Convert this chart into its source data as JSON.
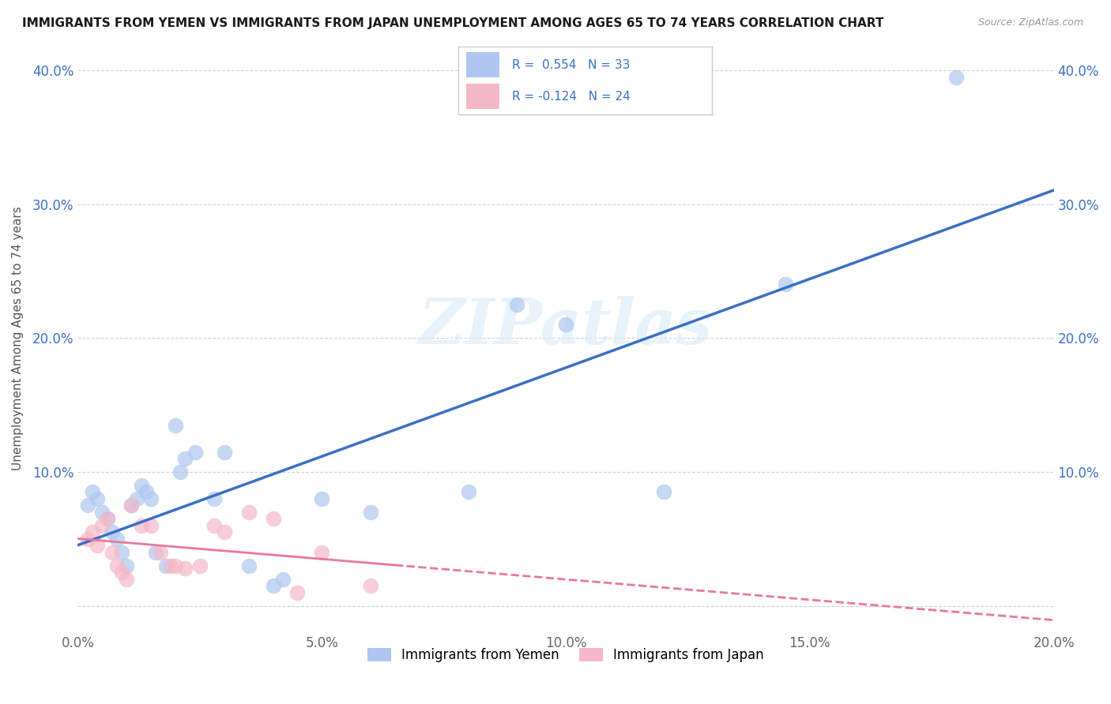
{
  "title": "IMMIGRANTS FROM YEMEN VS IMMIGRANTS FROM JAPAN UNEMPLOYMENT AMONG AGES 65 TO 74 YEARS CORRELATION CHART",
  "source": "Source: ZipAtlas.com",
  "ylabel": "Unemployment Among Ages 65 to 74 years",
  "xlim": [
    0.0,
    0.2
  ],
  "ylim": [
    -0.02,
    0.42
  ],
  "xticks": [
    0.0,
    0.05,
    0.1,
    0.15,
    0.2
  ],
  "yticks": [
    0.0,
    0.1,
    0.2,
    0.3,
    0.4
  ],
  "xtick_labels": [
    "0.0%",
    "5.0%",
    "10.0%",
    "15.0%",
    "20.0%"
  ],
  "ytick_labels": [
    "",
    "10.0%",
    "20.0%",
    "30.0%",
    "40.0%"
  ],
  "legend_bottom": [
    "Immigrants from Yemen",
    "Immigrants from Japan"
  ],
  "yemen_color": "#aec6f0",
  "japan_color": "#f5b8c8",
  "yemen_line_color": "#3a6fc4",
  "japan_line_color": "#e8789a",
  "watermark": "ZIPatlas",
  "bg_color": "#ffffff",
  "grid_color": "#cccccc",
  "yemen_scatter_x": [
    0.002,
    0.003,
    0.004,
    0.005,
    0.006,
    0.007,
    0.008,
    0.009,
    0.01,
    0.011,
    0.012,
    0.013,
    0.014,
    0.015,
    0.016,
    0.018,
    0.02,
    0.021,
    0.022,
    0.024,
    0.028,
    0.03,
    0.035,
    0.04,
    0.042,
    0.05,
    0.06,
    0.08,
    0.09,
    0.1,
    0.12,
    0.145,
    0.18
  ],
  "yemen_scatter_y": [
    0.075,
    0.085,
    0.08,
    0.07,
    0.065,
    0.055,
    0.05,
    0.04,
    0.03,
    0.075,
    0.08,
    0.09,
    0.085,
    0.08,
    0.04,
    0.03,
    0.135,
    0.1,
    0.11,
    0.115,
    0.08,
    0.115,
    0.03,
    0.015,
    0.02,
    0.08,
    0.07,
    0.085,
    0.225,
    0.21,
    0.085,
    0.24,
    0.395
  ],
  "japan_scatter_x": [
    0.002,
    0.003,
    0.004,
    0.005,
    0.006,
    0.007,
    0.008,
    0.009,
    0.01,
    0.011,
    0.013,
    0.015,
    0.017,
    0.019,
    0.02,
    0.022,
    0.025,
    0.028,
    0.03,
    0.035,
    0.04,
    0.045,
    0.05,
    0.06
  ],
  "japan_scatter_y": [
    0.05,
    0.055,
    0.045,
    0.06,
    0.065,
    0.04,
    0.03,
    0.025,
    0.02,
    0.075,
    0.06,
    0.06,
    0.04,
    0.03,
    0.03,
    0.028,
    0.03,
    0.06,
    0.055,
    0.07,
    0.065,
    0.01,
    0.04,
    0.015
  ]
}
